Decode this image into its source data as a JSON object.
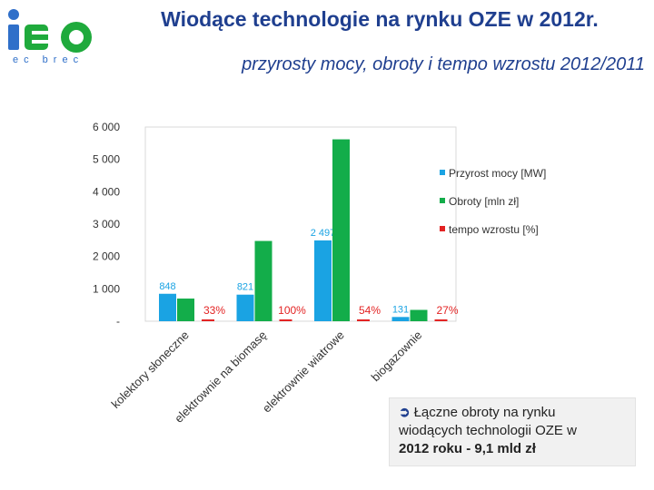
{
  "header": {
    "logo_text": "ec brec",
    "title": "Wiodące technologie na rynku OZE w 2012r.",
    "subtitle": "przyrosty mocy, obroty i tempo wzrostu 2012/2011"
  },
  "callout": {
    "line1": "Łączne obroty na rynku",
    "line2": "wiodących technologii OZE w",
    "line3": "2012 roku -  9,1 mld zł"
  },
  "colors": {
    "logo_blue": "#2f6fc9",
    "logo_green": "#1faa3c",
    "series_blue": "#1aa3e3",
    "series_green": "#13ad4a",
    "series_red": "#e32323",
    "title": "#1f3f8f"
  },
  "chart_data": {
    "type": "bar",
    "categories": [
      "kolektory słoneczne",
      "elektrownie na biomasę",
      "elektrownie wiatrowe",
      "biogazownie"
    ],
    "y_ticks": [
      "6 000",
      "5 000",
      "4 000",
      "3 000",
      "2 000",
      "1 000",
      "-"
    ],
    "ylim": [
      0,
      6000
    ],
    "grid": false,
    "legend_position": "right",
    "series": [
      {
        "name": "Przyrost mocy  [MW]",
        "values": [
          848,
          821,
          2497,
          131
        ],
        "labels": [
          "848",
          "821",
          "2 497",
          "131"
        ],
        "color": "#1aa3e3"
      },
      {
        "name": "Obroty [mln zł]",
        "values": [
          700,
          2480,
          5620,
          350
        ],
        "color": "#13ad4a"
      },
      {
        "name": "tempo wzrostu [%]",
        "values": [
          33,
          100,
          54,
          27
        ],
        "labels": [
          "33%",
          "100%",
          "54%",
          "27%"
        ],
        "color": "#e32323"
      }
    ]
  }
}
